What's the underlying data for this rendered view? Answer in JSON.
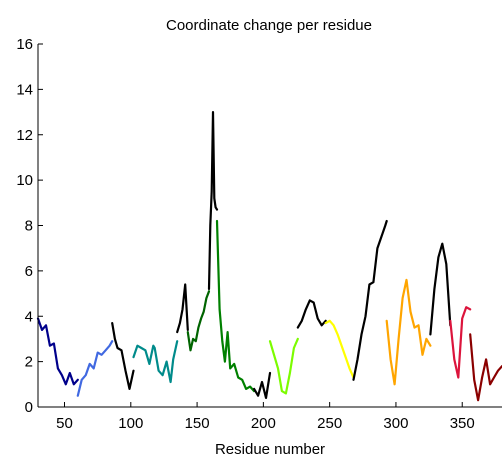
{
  "chart_data": {
    "type": "line",
    "title": "Coordinate change per residue",
    "xlabel": "Residue number",
    "ylabel": "",
    "xlim": [
      30,
      380
    ],
    "ylim": [
      0,
      16
    ],
    "xticks": [
      50,
      100,
      150,
      200,
      250,
      300,
      350
    ],
    "yticks": [
      0,
      2,
      4,
      6,
      8,
      10,
      12,
      14,
      16
    ],
    "grid": false,
    "legend": "none",
    "series": [
      {
        "color": "#00008b",
        "x": [
          30,
          33,
          36,
          39,
          42,
          45,
          48,
          51,
          54,
          57,
          60
        ],
        "y": [
          3.9,
          3.4,
          3.6,
          2.7,
          2.8,
          1.7,
          1.4,
          1.0,
          1.5,
          1.0,
          1.2
        ]
      },
      {
        "color": "#4169e1",
        "x": [
          60,
          63,
          66,
          69,
          72,
          75,
          78,
          81,
          84,
          86
        ],
        "y": [
          0.5,
          1.2,
          1.4,
          1.9,
          1.7,
          2.4,
          2.3,
          2.5,
          2.7,
          2.9
        ]
      },
      {
        "color": "#000000",
        "x": [
          86,
          88,
          90,
          93,
          96,
          99,
          102
        ],
        "y": [
          3.7,
          3.0,
          2.6,
          2.5,
          1.6,
          0.8,
          1.6
        ]
      },
      {
        "color": "#008b8b",
        "x": [
          102,
          105,
          108,
          111,
          114,
          117,
          118,
          121,
          124,
          127,
          130,
          132,
          135
        ],
        "y": [
          2.2,
          2.7,
          2.6,
          2.5,
          1.9,
          2.7,
          2.6,
          1.6,
          1.4,
          2.0,
          1.1,
          2.1,
          2.9
        ]
      },
      {
        "color": "#000000",
        "x": [
          135,
          137,
          139,
          141,
          143
        ],
        "y": [
          3.3,
          3.7,
          4.3,
          5.4,
          3.4
        ]
      },
      {
        "color": "#006400",
        "x": [
          143,
          145,
          147,
          149,
          151,
          153,
          155,
          157,
          159
        ],
        "y": [
          3.3,
          2.5,
          3.0,
          2.9,
          3.5,
          3.9,
          4.2,
          4.8,
          5.1
        ]
      },
      {
        "color": "#000000",
        "x": [
          159,
          160,
          161,
          162,
          163,
          164,
          165
        ],
        "y": [
          5.2,
          8.0,
          9.5,
          13.0,
          9.2,
          8.8,
          8.7
        ]
      },
      {
        "color": "#008000",
        "x": [
          165,
          167,
          169,
          171,
          173,
          175,
          178,
          181,
          184,
          187,
          190,
          193
        ],
        "y": [
          8.2,
          4.3,
          2.9,
          2.0,
          3.3,
          1.7,
          1.9,
          1.3,
          1.2,
          0.8,
          0.9,
          0.7
        ]
      },
      {
        "color": "#000000",
        "x": [
          193,
          196,
          199,
          202,
          205
        ],
        "y": [
          0.8,
          0.5,
          1.1,
          0.4,
          1.5
        ]
      },
      {
        "color": "#7cfc00",
        "x": [
          205,
          208,
          211,
          214,
          217,
          220,
          223,
          226
        ],
        "y": [
          2.9,
          2.3,
          1.7,
          0.7,
          0.6,
          1.5,
          2.6,
          3.0
        ]
      },
      {
        "color": "#000000",
        "x": [
          226,
          229,
          232,
          235,
          238,
          241,
          244,
          247
        ],
        "y": [
          3.5,
          3.8,
          4.3,
          4.7,
          4.6,
          3.9,
          3.6,
          3.8
        ]
      },
      {
        "color": "#ffff00",
        "x": [
          247,
          250,
          253,
          256,
          259,
          262,
          265,
          268
        ],
        "y": [
          3.7,
          3.8,
          3.6,
          3.2,
          2.7,
          2.2,
          1.7,
          1.3
        ]
      },
      {
        "color": "#000000",
        "x": [
          268,
          271,
          274,
          277,
          280,
          283,
          286,
          289,
          292,
          293
        ],
        "y": [
          1.2,
          2.1,
          3.2,
          4.0,
          5.4,
          5.5,
          7.0,
          7.5,
          8.0,
          8.2
        ]
      },
      {
        "color": "#ffa500",
        "x": [
          293,
          296,
          299,
          302,
          305,
          308,
          311,
          314,
          317,
          320,
          323,
          326
        ],
        "y": [
          3.8,
          2.1,
          1.0,
          3.0,
          4.8,
          5.6,
          4.2,
          3.5,
          3.6,
          2.3,
          3.0,
          2.7
        ]
      },
      {
        "color": "#000000",
        "x": [
          326,
          329,
          332,
          335,
          338,
          341
        ],
        "y": [
          3.2,
          5.2,
          6.6,
          7.2,
          6.3,
          3.6
        ]
      },
      {
        "color": "#dc143c",
        "x": [
          341,
          344,
          347,
          350,
          353,
          356
        ],
        "y": [
          3.8,
          2.1,
          1.3,
          3.9,
          4.4,
          4.3
        ]
      },
      {
        "color": "#8b0000",
        "x": [
          356,
          359,
          362,
          365,
          368,
          371,
          374,
          377,
          380
        ],
        "y": [
          3.2,
          1.2,
          0.3,
          1.3,
          2.1,
          1.0,
          1.3,
          1.6,
          1.8
        ]
      }
    ]
  }
}
